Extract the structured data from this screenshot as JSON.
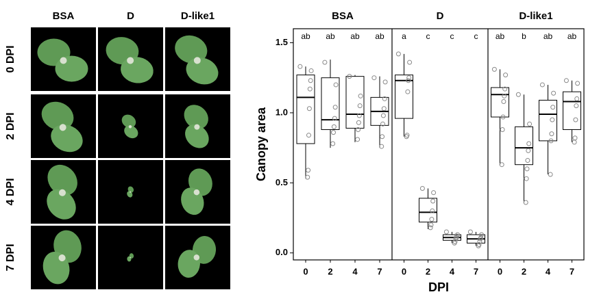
{
  "image_panel": {
    "columns": [
      "BSA",
      "D",
      "D-like1"
    ],
    "rows": [
      "0 DPI",
      "2 DPI",
      "4 DPI",
      "7 DPI"
    ]
  },
  "chart_data": {
    "type": "box",
    "ylabel": "Canopy area",
    "xlabel": "DPI",
    "ylim": [
      -0.05,
      1.6
    ],
    "yticks": [
      {
        "value": 0,
        "label": "0.0"
      },
      {
        "value": 0.5,
        "label": "0.5"
      },
      {
        "value": 1,
        "label": "1.0"
      },
      {
        "value": 1.5,
        "label": "1.5"
      }
    ],
    "facets": [
      {
        "name": "BSA",
        "categories": [
          "0",
          "2",
          "4",
          "7"
        ],
        "letters": [
          "ab",
          "ab",
          "ab",
          "ab"
        ],
        "boxes": [
          {
            "whislo": 0.53,
            "q1": 0.78,
            "med": 1.11,
            "q3": 1.27,
            "whishi": 1.33,
            "points": [
              1.33,
              1.3,
              1.23,
              1.17,
              1.03,
              0.84,
              0.59,
              0.54
            ]
          },
          {
            "whislo": 0.75,
            "q1": 0.88,
            "med": 0.95,
            "q3": 1.25,
            "whishi": 1.38,
            "points": [
              1.36,
              1.2,
              1.04,
              0.96,
              0.9,
              0.86,
              0.78
            ]
          },
          {
            "whislo": 0.79,
            "q1": 0.89,
            "med": 0.99,
            "q3": 1.26,
            "whishi": 1.27,
            "points": [
              1.26,
              1.12,
              1.05,
              0.98,
              0.93,
              0.88,
              0.81
            ]
          },
          {
            "whislo": 0.75,
            "q1": 0.91,
            "med": 1.01,
            "q3": 1.11,
            "whishi": 1.26,
            "points": [
              1.25,
              1.22,
              1.1,
              1.03,
              0.98,
              0.92,
              0.83,
              0.76
            ]
          }
        ]
      },
      {
        "name": "D",
        "categories": [
          "0",
          "2",
          "4",
          "7"
        ],
        "letters": [
          "a",
          "c",
          "c",
          "c"
        ],
        "boxes": [
          {
            "whislo": 0.83,
            "q1": 0.96,
            "med": 1.23,
            "q3": 1.27,
            "whishi": 1.42,
            "points": [
              1.42,
              1.36,
              1.25,
              1.23,
              1.15,
              0.84,
              0.83
            ]
          },
          {
            "whislo": 0.17,
            "q1": 0.22,
            "med": 0.29,
            "q3": 0.39,
            "whishi": 0.46,
            "points": [
              0.46,
              0.43,
              0.37,
              0.3,
              0.24,
              0.2,
              0.18
            ]
          },
          {
            "whislo": 0.07,
            "q1": 0.09,
            "med": 0.11,
            "q3": 0.13,
            "whishi": 0.15,
            "points": [
              0.15,
              0.13,
              0.12,
              0.11,
              0.1,
              0.08,
              0.07
            ]
          },
          {
            "whislo": 0.05,
            "q1": 0.07,
            "med": 0.1,
            "q3": 0.13,
            "whishi": 0.15,
            "points": [
              0.15,
              0.13,
              0.11,
              0.1,
              0.08,
              0.06,
              0.05
            ]
          }
        ]
      },
      {
        "name": "D-like1",
        "categories": [
          "0",
          "2",
          "4",
          "7"
        ],
        "letters": [
          "ab",
          "b",
          "ab",
          "ab"
        ],
        "boxes": [
          {
            "whislo": 0.63,
            "q1": 0.97,
            "med": 1.13,
            "q3": 1.18,
            "whishi": 1.31,
            "points": [
              1.31,
              1.27,
              1.17,
              1.12,
              1.08,
              0.97,
              0.88,
              0.63
            ]
          },
          {
            "whislo": 0.36,
            "q1": 0.63,
            "med": 0.75,
            "q3": 0.9,
            "whishi": 1.13,
            "points": [
              1.13,
              0.92,
              0.78,
              0.73,
              0.66,
              0.6,
              0.53,
              0.36
            ]
          },
          {
            "whislo": 0.56,
            "q1": 0.8,
            "med": 0.99,
            "q3": 1.09,
            "whishi": 1.2,
            "points": [
              1.2,
              1.14,
              1.04,
              0.95,
              0.85,
              0.8,
              0.56
            ]
          },
          {
            "whislo": 0.79,
            "q1": 0.88,
            "med": 1.08,
            "q3": 1.15,
            "whishi": 1.23,
            "points": [
              1.23,
              1.21,
              1.1,
              1.05,
              0.95,
              0.82,
              0.79
            ]
          }
        ]
      }
    ]
  }
}
